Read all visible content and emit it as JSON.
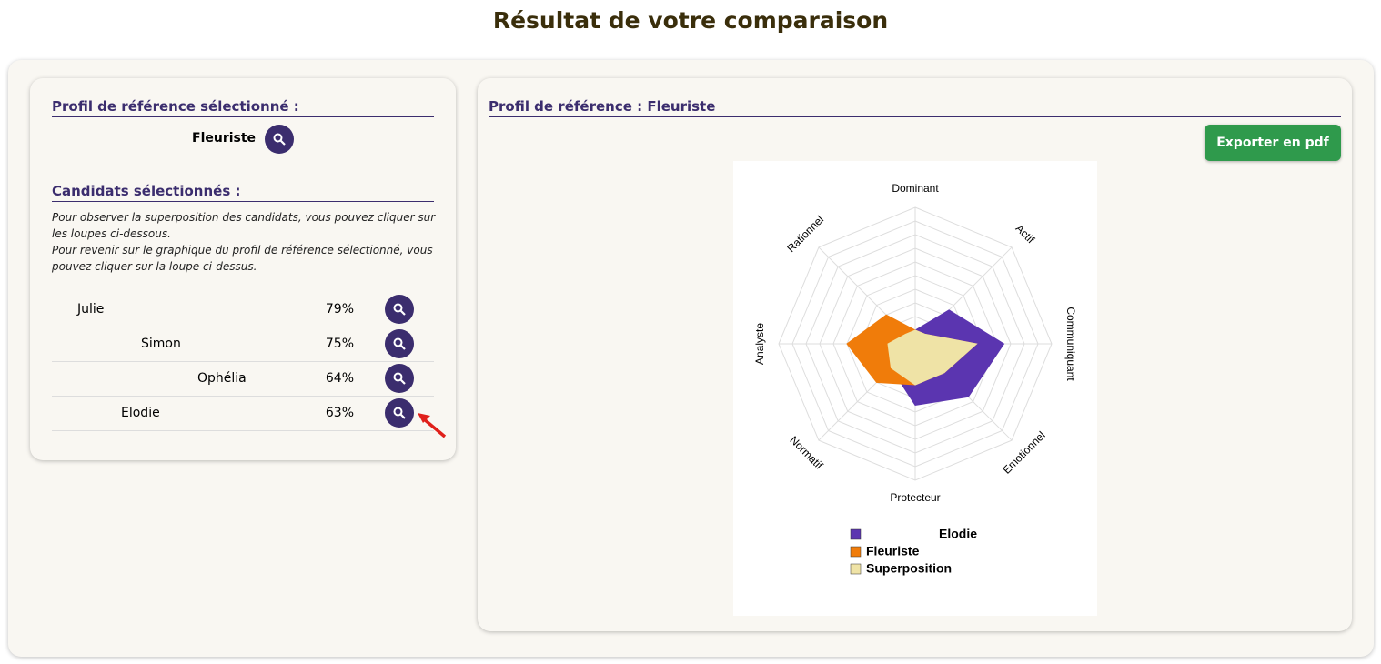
{
  "title": "Résultat de votre comparaison",
  "left_panel": {
    "reference_heading": "Profil de référence sélectionné :",
    "reference_name": "Fleuriste",
    "candidates_heading": "Candidats sélectionnés :",
    "instructions": [
      "Pour observer la superposition des candidats, vous pouvez cliquer sur les loupes ci-dessous.",
      "Pour revenir sur le graphique du profil de référence sélectionné, vous pouvez cliquer sur la loupe ci-dessus."
    ],
    "candidates": [
      {
        "name": "Julie",
        "score": "79%"
      },
      {
        "name": "Simon",
        "score": "75%"
      },
      {
        "name": "Ophélia",
        "score": "64%"
      },
      {
        "name": "Elodie",
        "score": "63%"
      }
    ]
  },
  "right_panel": {
    "heading": "Profil de référence : Fleuriste",
    "export_button": "Exporter en pdf"
  },
  "chart_data": {
    "type": "radar",
    "axes": [
      "Dominant",
      "Actif",
      "Communiquant",
      "Emotionnel",
      "Protecteur",
      "Normatif",
      "Analyste",
      "Rationnel"
    ],
    "series": [
      {
        "name": "Elodie",
        "color": "#5b35b0",
        "values": [
          1,
          3.5,
          6.5,
          5.5,
          4.5,
          2.5,
          2,
          1
        ]
      },
      {
        "name": "Fleuriste",
        "color": "#f07c0a",
        "values": [
          1,
          1,
          4.5,
          3,
          3,
          4,
          5,
          3
        ]
      },
      {
        "name": "Superposition",
        "color": "#efe3a6",
        "values": [
          1,
          1,
          4.5,
          3,
          3,
          2.5,
          2,
          1
        ]
      }
    ],
    "rlim": [
      0,
      10
    ],
    "rticks": [
      1,
      2,
      3,
      4,
      5,
      6,
      7,
      8,
      9,
      10
    ]
  }
}
